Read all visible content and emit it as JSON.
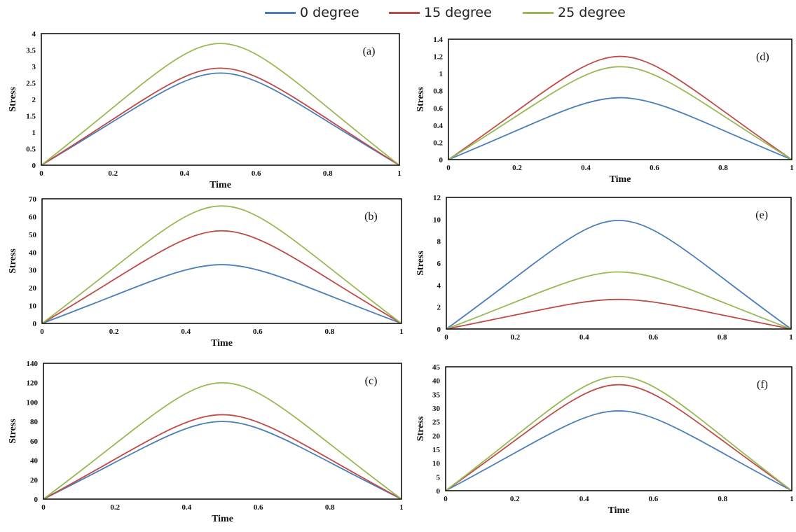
{
  "legend": {
    "items": [
      {
        "label": "0 degree",
        "color": "#4a7ebb"
      },
      {
        "label": "15 degree",
        "color": "#be4b48"
      },
      {
        "label": "25 degree",
        "color": "#98b954"
      }
    ]
  },
  "chart_data": [
    {
      "panel": "(a)",
      "type": "line",
      "xlabel": "Time",
      "ylabel": "Stress",
      "xlim": [
        0,
        1
      ],
      "ylim": [
        0,
        4
      ],
      "xticks": [
        "0",
        "0.2",
        "0.4",
        "0.6",
        "0.8",
        "1"
      ],
      "yticks": [
        "0",
        "0.5",
        "1",
        "1.5",
        "2",
        "2.5",
        "3",
        "3.5",
        "4"
      ],
      "x": [
        0,
        0.5,
        1
      ],
      "series": [
        {
          "name": "0 degree",
          "values": [
            0,
            2.8,
            0
          ]
        },
        {
          "name": "15 degree",
          "values": [
            0,
            2.95,
            0
          ]
        },
        {
          "name": "25 degree",
          "values": [
            0,
            3.7,
            0
          ]
        }
      ]
    },
    {
      "panel": "(b)",
      "type": "line",
      "xlabel": "Time",
      "ylabel": "Stress",
      "xlim": [
        0,
        1
      ],
      "ylim": [
        0,
        70
      ],
      "xticks": [
        "0",
        "0.2",
        "0.4",
        "0.6",
        "0.8",
        "1"
      ],
      "yticks": [
        "0",
        "10",
        "20",
        "30",
        "40",
        "50",
        "60",
        "70"
      ],
      "x": [
        0,
        0.5,
        1
      ],
      "series": [
        {
          "name": "0 degree",
          "values": [
            0,
            33,
            0
          ]
        },
        {
          "name": "15 degree",
          "values": [
            0,
            52,
            0
          ]
        },
        {
          "name": "25 degree",
          "values": [
            0,
            66,
            0
          ]
        }
      ]
    },
    {
      "panel": "(c)",
      "type": "line",
      "xlabel": "Time",
      "ylabel": "Stress",
      "xlim": [
        0,
        1
      ],
      "ylim": [
        0,
        140
      ],
      "xticks": [
        "0",
        "0.2",
        "0.4",
        "0.6",
        "0.8",
        "1"
      ],
      "yticks": [
        "0",
        "20",
        "40",
        "60",
        "80",
        "100",
        "120",
        "140"
      ],
      "x": [
        0,
        0.5,
        1
      ],
      "series": [
        {
          "name": "0 degree",
          "values": [
            0,
            80,
            0
          ]
        },
        {
          "name": "15 degree",
          "values": [
            0,
            87,
            0
          ]
        },
        {
          "name": "25 degree",
          "values": [
            0,
            120,
            0
          ]
        }
      ]
    },
    {
      "panel": "(d)",
      "type": "line",
      "xlabel": "Time",
      "ylabel": "Stress",
      "xlim": [
        0,
        1
      ],
      "ylim": [
        0,
        1.4
      ],
      "xticks": [
        "0",
        "0.2",
        "0.4",
        "0.6",
        "0.8",
        "1"
      ],
      "yticks": [
        "0",
        "0.2",
        "0.4",
        "0.6",
        "0.8",
        "1",
        "1.2",
        "1.4"
      ],
      "x": [
        0,
        0.5,
        1
      ],
      "series": [
        {
          "name": "0 degree",
          "values": [
            0,
            0.72,
            0
          ]
        },
        {
          "name": "15 degree",
          "values": [
            0,
            1.2,
            0
          ]
        },
        {
          "name": "25 degree",
          "values": [
            0,
            1.08,
            0
          ]
        }
      ]
    },
    {
      "panel": "(e)",
      "type": "line",
      "xlabel": "",
      "ylabel": "Stress",
      "xlim": [
        0,
        1
      ],
      "ylim": [
        0,
        12
      ],
      "xticks": [
        "0",
        "0.2",
        "0.4",
        "0.6",
        "0.8",
        "1"
      ],
      "yticks": [
        "0",
        "2",
        "4",
        "6",
        "8",
        "10",
        "12"
      ],
      "x": [
        0,
        0.5,
        1
      ],
      "series": [
        {
          "name": "0 degree",
          "values": [
            0,
            9.9,
            0
          ]
        },
        {
          "name": "15 degree",
          "values": [
            0,
            2.7,
            0
          ]
        },
        {
          "name": "25 degree",
          "values": [
            0,
            5.2,
            0
          ]
        }
      ]
    },
    {
      "panel": "(f)",
      "type": "line",
      "xlabel": "Time",
      "ylabel": "Stress",
      "xlim": [
        0,
        1
      ],
      "ylim": [
        0,
        45
      ],
      "xticks": [
        "0",
        "0.2",
        "0.4",
        "0.6",
        "0.8",
        "1"
      ],
      "yticks": [
        "0",
        "5",
        "10",
        "15",
        "20",
        "25",
        "30",
        "35",
        "40",
        "45"
      ],
      "x": [
        0,
        0.5,
        1
      ],
      "series": [
        {
          "name": "0 degree",
          "values": [
            0,
            29,
            0
          ]
        },
        {
          "name": "15 degree",
          "values": [
            0,
            38.5,
            0
          ]
        },
        {
          "name": "25 degree",
          "values": [
            0,
            41.5,
            0
          ]
        }
      ]
    }
  ]
}
